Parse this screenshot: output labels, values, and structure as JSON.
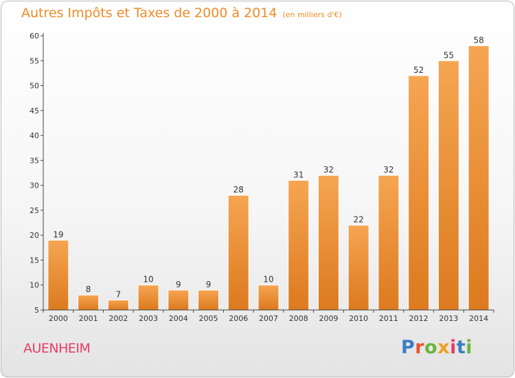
{
  "header": {
    "title": "Autres Impôts et Taxes de 2000 à 2014",
    "subtitle": "(en milliers d'€)"
  },
  "footer": {
    "location": "AUENHEIM",
    "brand": "Proxiti"
  },
  "colors": {
    "title": "#f08a24",
    "location": "#e63c65",
    "bar_light": "#f6a552",
    "bar_dark": "#dc7a1e",
    "logo_letters": [
      "#3b7dc4",
      "#e8542f",
      "#6cb33e",
      "#f0a020",
      "#e63c65",
      "#3b7dc4",
      "#6cb33e"
    ]
  },
  "chart_data": {
    "type": "bar",
    "title": "Autres Impôts et Taxes de 2000 à 2014",
    "subtitle": "(en milliers d'€)",
    "xlabel": "",
    "ylabel": "",
    "categories": [
      "2000",
      "2001",
      "2002",
      "2003",
      "2004",
      "2005",
      "2006",
      "2007",
      "2008",
      "2009",
      "2010",
      "2011",
      "2012",
      "2013",
      "2014"
    ],
    "values": [
      19,
      8,
      7,
      10,
      9,
      9,
      28,
      10,
      31,
      32,
      22,
      32,
      52,
      55,
      58
    ],
    "ylim": [
      5,
      60
    ],
    "yticks": [
      5,
      10,
      15,
      20,
      25,
      30,
      35,
      40,
      45,
      50,
      55,
      60
    ],
    "data_labels": true,
    "grid": false,
    "legend": "none"
  }
}
